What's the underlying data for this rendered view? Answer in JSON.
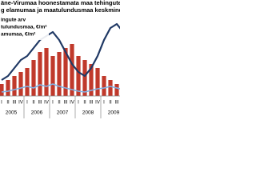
{
  "chart_data": {
    "type": "bar",
    "title_lines": [
      "äne-Virumaa hoonestamata maa tehingute a",
      "g elamumaa ja maatulundusmaa keskmine h"
    ],
    "categories": [
      "I",
      "II",
      "III",
      "IV",
      "I",
      "II",
      "III",
      "IV",
      "I",
      "II",
      "III",
      "IV",
      "I",
      "II",
      "III",
      "IV",
      "I",
      "II",
      "III",
      "IV"
    ],
    "years": [
      "2005",
      "2006",
      "2007",
      "2008",
      "2009"
    ],
    "series": [
      {
        "name": "ingute arv",
        "type": "bar",
        "color": "#c0392b",
        "values": [
          15,
          20,
          25,
          30,
          35,
          45,
          55,
          60,
          50,
          55,
          60,
          65,
          50,
          45,
          40,
          35,
          25,
          20,
          15,
          20
        ]
      },
      {
        "name": "tulundusmaa, €/m²",
        "type": "line",
        "color": "#7fb2e5",
        "values": [
          5,
          6,
          8,
          10,
          12,
          10,
          14,
          12,
          15,
          12,
          10,
          8,
          6,
          5,
          7,
          9,
          10,
          12,
          10,
          8
        ]
      },
      {
        "name": "amumaa, €/m²",
        "type": "line",
        "color": "#1f3864",
        "values": [
          20,
          25,
          35,
          45,
          50,
          60,
          70,
          75,
          80,
          70,
          55,
          40,
          30,
          25,
          35,
          50,
          70,
          85,
          90,
          80
        ]
      }
    ],
    "ylim": [
      0,
      100
    ]
  }
}
